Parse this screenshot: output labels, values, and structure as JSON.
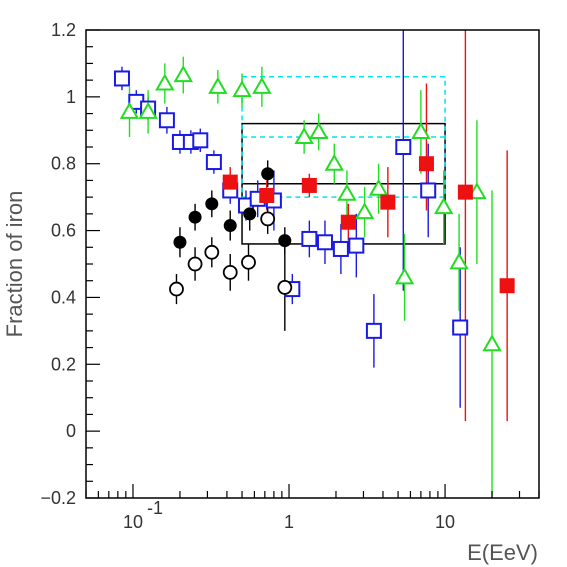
{
  "chart_data": {
    "type": "scatter",
    "title": "",
    "xlabel": "E(EeV)",
    "ylabel": "Fraction of iron",
    "x_scale": "log",
    "xlim": [
      0.05,
      40
    ],
    "ylim": [
      -0.2,
      1.2
    ],
    "grid": false,
    "x_ticks": [
      {
        "value": 0.1,
        "label": "10",
        "exponent": "-1"
      },
      {
        "value": 1,
        "label": "1",
        "exponent": ""
      },
      {
        "value": 10,
        "label": "10",
        "exponent": ""
      }
    ],
    "y_ticks": [
      {
        "value": -0.2,
        "label": "−0.2"
      },
      {
        "value": 0,
        "label": "0"
      },
      {
        "value": 0.2,
        "label": "0.2"
      },
      {
        "value": 0.4,
        "label": "0.4"
      },
      {
        "value": 0.6,
        "label": "0.6"
      },
      {
        "value": 0.8,
        "label": "0.8"
      },
      {
        "value": 1,
        "label": "1"
      },
      {
        "value": 1.2,
        "label": "1.2"
      }
    ],
    "series": [
      {
        "marker": "open-square",
        "color": "#1a1ae6",
        "points": [
          {
            "x": 0.085,
            "y": 1.055,
            "lo": 1.02,
            "hi": 1.09
          },
          {
            "x": 0.105,
            "y": 0.985,
            "lo": 0.95,
            "hi": 1.02
          },
          {
            "x": 0.125,
            "y": 0.965,
            "lo": 0.93,
            "hi": 1.0
          },
          {
            "x": 0.165,
            "y": 0.93,
            "lo": 0.89,
            "hi": 0.97
          },
          {
            "x": 0.2,
            "y": 0.865,
            "lo": 0.83,
            "hi": 0.9
          },
          {
            "x": 0.235,
            "y": 0.865,
            "lo": 0.83,
            "hi": 0.9
          },
          {
            "x": 0.27,
            "y": 0.87,
            "lo": 0.835,
            "hi": 0.905
          },
          {
            "x": 0.33,
            "y": 0.805,
            "lo": 0.77,
            "hi": 0.84
          },
          {
            "x": 0.42,
            "y": 0.72,
            "lo": 0.68,
            "hi": 0.76
          },
          {
            "x": 0.53,
            "y": 0.675,
            "lo": 0.63,
            "hi": 0.72
          },
          {
            "x": 0.63,
            "y": 0.695,
            "lo": 0.64,
            "hi": 0.75
          },
          {
            "x": 0.8,
            "y": 0.69,
            "lo": 0.6,
            "hi": 0.78
          },
          {
            "x": 1.05,
            "y": 0.425,
            "lo": 0.38,
            "hi": 0.47
          },
          {
            "x": 1.35,
            "y": 0.575,
            "lo": 0.52,
            "hi": 0.63
          },
          {
            "x": 1.7,
            "y": 0.565,
            "lo": 0.5,
            "hi": 0.63
          },
          {
            "x": 2.15,
            "y": 0.545,
            "lo": 0.47,
            "hi": 0.62
          },
          {
            "x": 2.7,
            "y": 0.555,
            "lo": 0.46,
            "hi": 0.65
          },
          {
            "x": 3.5,
            "y": 0.3,
            "lo": 0.19,
            "hi": 0.41
          },
          {
            "x": 5.4,
            "y": 0.85,
            "lo": 0.42,
            "hi": 1.22
          },
          {
            "x": 7.8,
            "y": 0.72,
            "lo": 0.58,
            "hi": 0.86
          },
          {
            "x": 12.5,
            "y": 0.31,
            "lo": 0.07,
            "hi": 0.55
          }
        ]
      },
      {
        "marker": "open-triangle",
        "color": "#22dd22",
        "points": [
          {
            "x": 0.095,
            "y": 0.955,
            "lo": 0.88,
            "hi": 1.03
          },
          {
            "x": 0.125,
            "y": 0.955,
            "lo": 0.89,
            "hi": 1.02
          },
          {
            "x": 0.16,
            "y": 1.04,
            "lo": 0.98,
            "hi": 1.1
          },
          {
            "x": 0.21,
            "y": 1.065,
            "lo": 1.01,
            "hi": 1.12
          },
          {
            "x": 0.35,
            "y": 1.03,
            "lo": 0.98,
            "hi": 1.08
          },
          {
            "x": 0.5,
            "y": 1.02,
            "lo": 0.97,
            "hi": 1.07
          },
          {
            "x": 0.67,
            "y": 1.03,
            "lo": 0.97,
            "hi": 1.09
          },
          {
            "x": 1.25,
            "y": 0.88,
            "lo": 0.83,
            "hi": 0.93
          },
          {
            "x": 1.55,
            "y": 0.895,
            "lo": 0.84,
            "hi": 0.95
          },
          {
            "x": 1.95,
            "y": 0.8,
            "lo": 0.74,
            "hi": 0.86
          },
          {
            "x": 2.35,
            "y": 0.71,
            "lo": 0.64,
            "hi": 0.78
          },
          {
            "x": 3.05,
            "y": 0.655,
            "lo": 0.58,
            "hi": 0.73
          },
          {
            "x": 3.75,
            "y": 0.725,
            "lo": 0.65,
            "hi": 0.8
          },
          {
            "x": 5.5,
            "y": 0.46,
            "lo": 0.33,
            "hi": 0.59
          },
          {
            "x": 7.0,
            "y": 0.895,
            "lo": 0.77,
            "hi": 1.02
          },
          {
            "x": 9.8,
            "y": 0.67,
            "lo": 0.56,
            "hi": 0.78
          },
          {
            "x": 12.3,
            "y": 0.505,
            "lo": 0.36,
            "hi": 0.65
          },
          {
            "x": 16.0,
            "y": 0.715,
            "lo": 0.5,
            "hi": 0.93
          },
          {
            "x": 20.0,
            "y": 0.26,
            "lo": -0.2,
            "hi": 0.72
          }
        ]
      },
      {
        "marker": "filled-square",
        "color": "#ee1111",
        "points": [
          {
            "x": 0.42,
            "y": 0.745,
            "lo": 0.7,
            "hi": 0.79
          },
          {
            "x": 0.72,
            "y": 0.705,
            "lo": 0.66,
            "hi": 0.75
          },
          {
            "x": 1.35,
            "y": 0.735,
            "lo": 0.7,
            "hi": 0.77
          },
          {
            "x": 2.4,
            "y": 0.625,
            "lo": 0.57,
            "hi": 0.68
          },
          {
            "x": 4.3,
            "y": 0.685,
            "lo": 0.58,
            "hi": 0.79
          },
          {
            "x": 7.6,
            "y": 0.8,
            "lo": 0.66,
            "hi": 1.04
          },
          {
            "x": 13.5,
            "y": 0.715,
            "lo": 0.03,
            "hi": 1.24
          },
          {
            "x": 25.0,
            "y": 0.435,
            "lo": 0.03,
            "hi": 0.84
          }
        ]
      },
      {
        "marker": "filled-circle",
        "color": "#000000",
        "points": [
          {
            "x": 0.2,
            "y": 0.565,
            "lo": 0.52,
            "hi": 0.61
          },
          {
            "x": 0.25,
            "y": 0.64,
            "lo": 0.6,
            "hi": 0.68
          },
          {
            "x": 0.32,
            "y": 0.68,
            "lo": 0.64,
            "hi": 0.72
          },
          {
            "x": 0.42,
            "y": 0.615,
            "lo": 0.57,
            "hi": 0.66
          },
          {
            "x": 0.56,
            "y": 0.65,
            "lo": 0.6,
            "hi": 0.7
          },
          {
            "x": 0.73,
            "y": 0.77,
            "lo": 0.73,
            "hi": 0.81
          },
          {
            "x": 0.94,
            "y": 0.57,
            "lo": 0.53,
            "hi": 0.61
          }
        ]
      },
      {
        "marker": "open-circle",
        "color": "#000000",
        "points": [
          {
            "x": 0.19,
            "y": 0.425,
            "lo": 0.38,
            "hi": 0.47
          },
          {
            "x": 0.25,
            "y": 0.5,
            "lo": 0.45,
            "hi": 0.55
          },
          {
            "x": 0.32,
            "y": 0.535,
            "lo": 0.49,
            "hi": 0.58
          },
          {
            "x": 0.42,
            "y": 0.475,
            "lo": 0.42,
            "hi": 0.53
          },
          {
            "x": 0.55,
            "y": 0.505,
            "lo": 0.45,
            "hi": 0.56
          },
          {
            "x": 0.73,
            "y": 0.635,
            "lo": 0.59,
            "hi": 0.68
          },
          {
            "x": 0.94,
            "y": 0.43,
            "lo": 0.3,
            "hi": 0.56
          }
        ]
      }
    ],
    "bands": [
      {
        "x": [
          0.5,
          10
        ],
        "y": [
          0.56,
          0.92
        ],
        "mid": 0.74,
        "color": "#000000",
        "style": "solid"
      },
      {
        "x": [
          0.5,
          10
        ],
        "y": [
          0.7,
          1.06
        ],
        "mid": 0.88,
        "color": "#00e5ee",
        "style": "dashed"
      }
    ]
  }
}
